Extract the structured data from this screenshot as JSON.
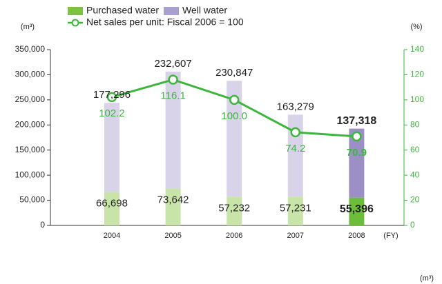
{
  "chart_data": {
    "type": "bar-line",
    "categories": [
      "2004",
      "2005",
      "2006",
      "2007",
      "2008"
    ],
    "x_unit": "(FY)",
    "y_unit": "(m³)",
    "y2_unit": "(%)",
    "annotations": [
      "(m³)"
    ],
    "highlight_category": "2008",
    "stacked": true,
    "series": [
      {
        "name": "Purchased water",
        "type": "bar",
        "color": "#7dc242",
        "colors": [
          "#c9e4a8",
          "#c9e4a8",
          "#c9e4a8",
          "#c9e4a8",
          "#6cbd3a"
        ],
        "values": [
          66698,
          73642,
          57232,
          57231,
          55396
        ],
        "value_labels": [
          "66,698",
          "73,642",
          "57,232",
          "57,231",
          "55,396"
        ]
      },
      {
        "name": "Well water",
        "type": "bar",
        "color": "#a99ed0",
        "colors": [
          "#d9d3ea",
          "#d9d3ea",
          "#d9d3ea",
          "#d9d3ea",
          "#9c8fc5"
        ],
        "values": [
          177296,
          232607,
          230847,
          163279,
          137318
        ],
        "value_labels": [
          "177,296",
          "232,607",
          "230,847",
          "163,279",
          "137,318"
        ]
      },
      {
        "name": "Net sales per unit: Fiscal 2006 = 100",
        "type": "line",
        "axis": "y2",
        "color": "#3cb63c",
        "values": [
          102.2,
          116.1,
          100,
          74.2,
          70.9
        ],
        "value_labels": [
          "102.2",
          "116.1",
          "100.0",
          "74.2",
          "70.9"
        ]
      }
    ],
    "ylim": [
      0,
      350000
    ],
    "yticks": [
      0,
      {
        "value": 50000,
        "label": "50,000"
      },
      {
        "value": 100000,
        "label": "100,000"
      },
      {
        "value": 150000,
        "label": "150,000"
      },
      {
        "value": 200000,
        "label": "200,000"
      },
      {
        "value": 250000,
        "label": "250,000"
      },
      {
        "value": 300000,
        "label": "300,000"
      },
      {
        "value": 350000,
        "label": "350,000"
      }
    ],
    "y2lim": [
      0,
      140
    ],
    "y2ticks": [
      0,
      20,
      40,
      60,
      80,
      100,
      120,
      140
    ]
  }
}
